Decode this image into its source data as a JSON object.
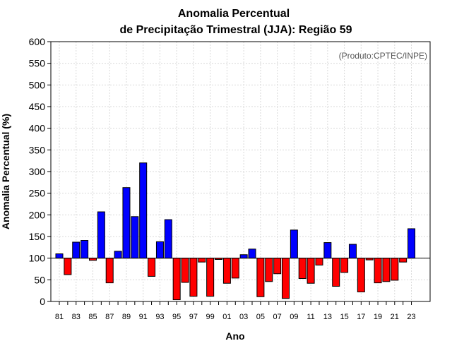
{
  "chart_data": {
    "type": "bar",
    "title_line1": "Anomalia Percentual",
    "title_line2": "de Precipitação Trimestral (JJA): Região 59",
    "xlabel": "Ano",
    "ylabel": "Anomalia Percentual (%)",
    "annotation": "(Produto:CPTEC/INPE)",
    "ylim": [
      0,
      600
    ],
    "yticks": [
      0,
      50,
      100,
      150,
      200,
      250,
      300,
      350,
      400,
      450,
      500,
      550,
      600
    ],
    "baseline": 100,
    "grid": true,
    "colors": {
      "above": "#0000ff",
      "below": "#ff0000",
      "outline": "#000000",
      "grid": "#d9d9d9"
    },
    "xtick_labels": [
      "81",
      "83",
      "85",
      "87",
      "89",
      "91",
      "93",
      "95",
      "97",
      "99",
      "01",
      "03",
      "05",
      "07",
      "09",
      "11",
      "13",
      "15",
      "17",
      "19",
      "21",
      "23"
    ],
    "categories": [
      "81",
      "82",
      "83",
      "84",
      "85",
      "86",
      "87",
      "88",
      "89",
      "90",
      "91",
      "92",
      "93",
      "94",
      "95",
      "96",
      "97",
      "98",
      "99",
      "00",
      "01",
      "02",
      "03",
      "04",
      "05",
      "06",
      "07",
      "08",
      "09",
      "10",
      "11",
      "12",
      "13",
      "14",
      "15",
      "16",
      "17",
      "18",
      "19",
      "20",
      "21",
      "22",
      "23"
    ],
    "values": [
      110,
      62,
      137,
      141,
      95,
      207,
      43,
      116,
      263,
      196,
      320,
      58,
      138,
      189,
      4,
      44,
      12,
      91,
      12,
      97,
      42,
      54,
      108,
      121,
      11,
      46,
      64,
      7,
      165,
      53,
      42,
      84,
      136,
      35,
      67,
      132,
      22,
      96,
      43,
      46,
      49,
      91,
      168
    ]
  }
}
